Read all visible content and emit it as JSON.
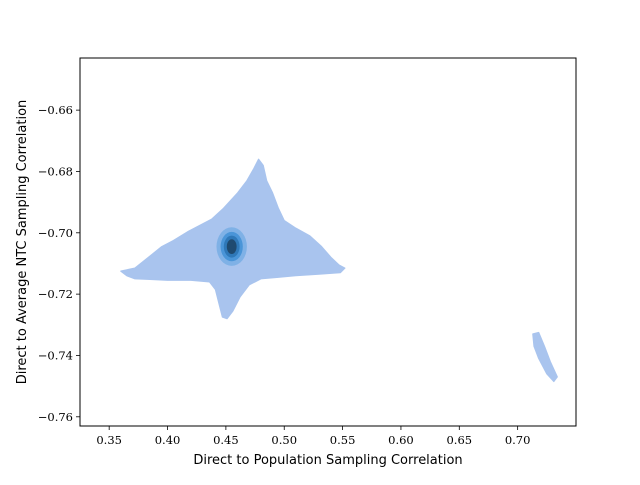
{
  "chart_data": {
    "type": "kde_density",
    "title": "",
    "xlabel": "Direct to Population Sampling Correlation",
    "ylabel": "Direct to Average NTC Sampling Correlation",
    "xlim": [
      0.325,
      0.75
    ],
    "ylim": [
      -0.763,
      -0.643
    ],
    "x_ticks": [
      0.35,
      0.4,
      0.45,
      0.5,
      0.55,
      0.6,
      0.65,
      0.7
    ],
    "x_tick_labels": [
      "0.35",
      "0.40",
      "0.45",
      "0.50",
      "0.55",
      "0.60",
      "0.65",
      "0.70"
    ],
    "y_ticks": [
      -0.66,
      -0.68,
      -0.7,
      -0.72,
      -0.74,
      -0.76
    ],
    "y_tick_labels": [
      "−0.66",
      "−0.68",
      "−0.70",
      "−0.72",
      "−0.74",
      "−0.76"
    ],
    "grid": false,
    "colors": {
      "outer": "#a9c4ee",
      "level2": "#7fb1e6",
      "level3": "#4a95d8",
      "level4": "#2f78b8",
      "core": "#1f4a70"
    },
    "regions": [
      {
        "name": "main cluster",
        "outline": [
          [
            0.36,
            -0.7125
          ],
          [
            0.372,
            -0.7115
          ],
          [
            0.382,
            -0.7085
          ],
          [
            0.395,
            -0.7045
          ],
          [
            0.405,
            -0.7025
          ],
          [
            0.418,
            -0.6995
          ],
          [
            0.428,
            -0.6975
          ],
          [
            0.438,
            -0.6955
          ],
          [
            0.448,
            -0.692
          ],
          [
            0.46,
            -0.687
          ],
          [
            0.468,
            -0.683
          ],
          [
            0.474,
            -0.679
          ],
          [
            0.478,
            -0.676
          ],
          [
            0.482,
            -0.678
          ],
          [
            0.485,
            -0.683
          ],
          [
            0.49,
            -0.687
          ],
          [
            0.495,
            -0.692
          ],
          [
            0.5,
            -0.696
          ],
          [
            0.51,
            -0.6985
          ],
          [
            0.522,
            -0.701
          ],
          [
            0.532,
            -0.7045
          ],
          [
            0.54,
            -0.708
          ],
          [
            0.547,
            -0.7105
          ],
          [
            0.552,
            -0.7115
          ],
          [
            0.548,
            -0.713
          ],
          [
            0.53,
            -0.7135
          ],
          [
            0.51,
            -0.714
          ],
          [
            0.495,
            -0.7145
          ],
          [
            0.48,
            -0.715
          ],
          [
            0.47,
            -0.717
          ],
          [
            0.462,
            -0.721
          ],
          [
            0.456,
            -0.7255
          ],
          [
            0.451,
            -0.728
          ],
          [
            0.447,
            -0.7275
          ],
          [
            0.444,
            -0.723
          ],
          [
            0.441,
            -0.7185
          ],
          [
            0.436,
            -0.716
          ],
          [
            0.42,
            -0.7155
          ],
          [
            0.4,
            -0.7155
          ],
          [
            0.385,
            -0.7152
          ],
          [
            0.372,
            -0.715
          ],
          [
            0.365,
            -0.714
          ]
        ]
      },
      {
        "name": "outlier cluster",
        "outline": [
          [
            0.713,
            -0.733
          ],
          [
            0.718,
            -0.7325
          ],
          [
            0.723,
            -0.737
          ],
          [
            0.728,
            -0.742
          ],
          [
            0.734,
            -0.747
          ],
          [
            0.731,
            -0.7485
          ],
          [
            0.725,
            -0.746
          ],
          [
            0.718,
            -0.741
          ],
          [
            0.714,
            -0.737
          ]
        ]
      }
    ],
    "density_peak": {
      "x": 0.455,
      "y": -0.7045
    },
    "contour_levels": [
      {
        "level": 2,
        "rx": 0.013,
        "ry": 0.0063,
        "color": "level2"
      },
      {
        "level": 3,
        "rx": 0.0095,
        "ry": 0.0048,
        "color": "level3"
      },
      {
        "level": 4,
        "rx": 0.0068,
        "ry": 0.0036,
        "color": "level4"
      },
      {
        "level": 5,
        "rx": 0.0042,
        "ry": 0.0024,
        "color": "core"
      }
    ]
  }
}
